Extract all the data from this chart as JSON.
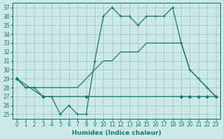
{
  "xlabel": "Humidex (Indice chaleur)",
  "bg_color": "#cce8e8",
  "grid_color": "#a8cccc",
  "line_color": "#1a7a6e",
  "xlim": [
    -0.5,
    23.5
  ],
  "ylim": [
    24.5,
    37.5
  ],
  "xticks": [
    0,
    1,
    2,
    3,
    4,
    5,
    6,
    7,
    8,
    9,
    10,
    11,
    12,
    13,
    14,
    15,
    16,
    17,
    18,
    19,
    20,
    21,
    22,
    23
  ],
  "yticks": [
    25,
    26,
    27,
    28,
    29,
    30,
    31,
    32,
    33,
    34,
    35,
    36,
    37
  ],
  "curve_top_x": [
    0,
    1,
    2,
    3,
    4,
    5,
    6,
    7,
    8,
    9,
    10,
    11,
    12,
    13,
    14,
    15,
    16,
    17,
    18,
    19,
    20,
    21,
    22,
    23
  ],
  "curve_top_y": [
    29,
    28,
    28,
    27,
    27,
    25,
    26,
    25,
    25,
    31,
    36,
    37,
    36,
    36,
    35,
    36,
    36,
    36,
    37,
    33,
    30,
    29,
    28,
    27
  ],
  "curve_mid_x": [
    0,
    1,
    2,
    3,
    4,
    5,
    6,
    7,
    8,
    9,
    10,
    11,
    12,
    13,
    14,
    15,
    16,
    17,
    18,
    19,
    20,
    21,
    22,
    23
  ],
  "curve_mid_y": [
    29,
    28,
    28,
    28,
    28,
    28,
    28,
    28,
    29,
    30,
    31,
    31,
    32,
    32,
    32,
    33,
    33,
    33,
    33,
    33,
    30,
    29,
    28,
    27
  ],
  "curve_flat_x": [
    0,
    3,
    8,
    19,
    20,
    21,
    22,
    23
  ],
  "curve_flat_y": [
    29,
    27,
    27,
    27,
    27,
    27,
    27,
    27
  ]
}
